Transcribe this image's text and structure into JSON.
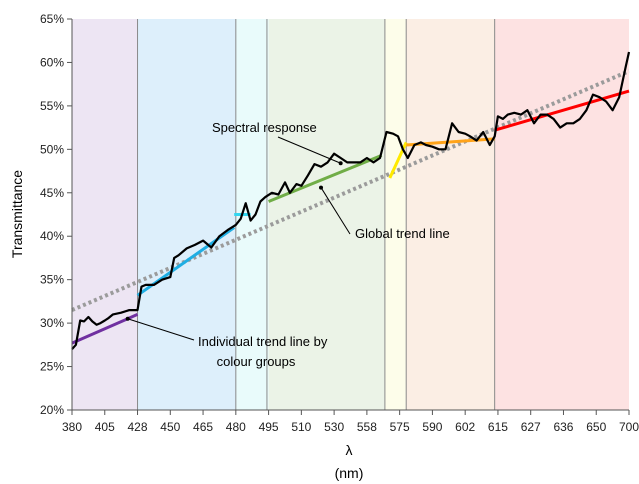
{
  "chart_data": {
    "type": "line",
    "title": "",
    "xlabel": "λ",
    "xlabel_unit": "(nm)",
    "ylabel": "Transmittance",
    "ylim": [
      20,
      65
    ],
    "y_ticks": [
      "20%",
      "25%",
      "30%",
      "35%",
      "40%",
      "45%",
      "50%",
      "55%",
      "60%",
      "65%"
    ],
    "x_ticks": [
      "380",
      "405",
      "428",
      "450",
      "465",
      "480",
      "495",
      "510",
      "530",
      "558",
      "575",
      "590",
      "602",
      "615",
      "627",
      "636",
      "650",
      "700"
    ],
    "grid": false,
    "colour_bands": [
      {
        "from": 0,
        "to": 2,
        "color": "#ede5f3"
      },
      {
        "from": 2,
        "to": 5,
        "color": "#ddeffb"
      },
      {
        "from": 5,
        "to": 6,
        "color": "#e9fbfb"
      },
      {
        "from": 6,
        "to": 9.55,
        "color": "#ebf3e7"
      },
      {
        "from": 9.55,
        "to": 10.2,
        "color": "#fdfdea"
      },
      {
        "from": 10.2,
        "to": 12.9,
        "color": "#fbeee4"
      },
      {
        "from": 12.9,
        "to": 17,
        "color": "#fde2e2"
      }
    ],
    "band_boundaries": [
      2,
      5,
      5.95,
      9.55,
      10.2,
      12.9
    ],
    "series": [
      {
        "name": "Spectral response",
        "color": "#000000",
        "x": [
          0,
          0.12,
          0.25,
          0.37,
          0.5,
          0.62,
          0.75,
          0.87,
          1.0,
          1.12,
          1.25,
          1.5,
          1.75,
          2.0,
          2.12,
          2.25,
          2.5,
          2.75,
          3.0,
          3.12,
          3.25,
          3.5,
          3.75,
          4.0,
          4.25,
          4.5,
          4.75,
          5.0,
          5.15,
          5.3,
          5.45,
          5.6,
          5.75,
          5.9,
          6.1,
          6.3,
          6.5,
          6.65,
          6.85,
          7.0,
          7.2,
          7.4,
          7.6,
          7.8,
          8.0,
          8.2,
          8.4,
          8.6,
          8.8,
          9.0,
          9.2,
          9.4,
          9.6,
          9.8,
          9.95,
          10.1,
          10.25,
          10.45,
          10.65,
          10.8,
          11.0,
          11.2,
          11.4,
          11.6,
          11.8,
          12.0,
          12.15,
          12.35,
          12.55,
          12.75,
          12.9,
          13.0,
          13.15,
          13.3,
          13.5,
          13.7,
          13.9,
          14.1,
          14.3,
          14.5,
          14.7,
          14.9,
          15.1,
          15.3,
          15.5,
          15.7,
          15.9,
          16.1,
          16.3,
          16.5,
          16.7,
          16.9,
          17.0
        ],
        "y": [
          27.0,
          27.5,
          30.3,
          30.2,
          30.7,
          30.2,
          29.8,
          30.0,
          30.3,
          30.6,
          31.0,
          31.2,
          31.5,
          31.5,
          34.2,
          34.4,
          34.4,
          35.0,
          35.3,
          37.5,
          37.8,
          38.6,
          39.0,
          39.5,
          38.7,
          40.0,
          40.7,
          41.3,
          42.0,
          43.8,
          41.8,
          42.5,
          44.0,
          44.5,
          45.0,
          44.8,
          46.2,
          45.0,
          46.0,
          45.8,
          47.0,
          48.3,
          48.0,
          48.5,
          49.5,
          49.0,
          48.5,
          48.5,
          48.5,
          49.0,
          48.5,
          49.0,
          52.0,
          51.8,
          51.5,
          50.0,
          49.0,
          50.5,
          50.8,
          50.5,
          50.3,
          50.0,
          50.0,
          53.0,
          52.0,
          51.8,
          51.5,
          51.0,
          52.0,
          50.5,
          51.5,
          53.8,
          53.5,
          54.0,
          54.2,
          54.0,
          54.5,
          53.0,
          54.0,
          54.0,
          53.5,
          52.5,
          53.0,
          53.0,
          53.5,
          54.5,
          56.3,
          56.0,
          55.5,
          54.5,
          56.0,
          59.5,
          61.2
        ]
      },
      {
        "name": "Global trend line",
        "color": "#9b9b9b",
        "dashed": true,
        "x": [
          0,
          17
        ],
        "y": [
          31.5,
          59.0
        ]
      },
      {
        "color": "#7030a0",
        "x": [
          0,
          2
        ],
        "y": [
          27.7,
          31.0
        ]
      },
      {
        "color": "#1faee3",
        "x": [
          2,
          4.95
        ],
        "y": [
          33.2,
          41.0
        ]
      },
      {
        "color": "#33d6f0",
        "x": [
          4.95,
          5.45
        ],
        "y": [
          42.5,
          42.5
        ]
      },
      {
        "color": "#70ad47",
        "x": [
          6.0,
          9.45
        ],
        "y": [
          44.0,
          49.3
        ]
      },
      {
        "color": "#ffea00",
        "x": [
          9.7,
          10.2
        ],
        "y": [
          46.7,
          50.8
        ]
      },
      {
        "color": "#ffa319",
        "x": [
          10.2,
          12.9
        ],
        "y": [
          50.5,
          51.2
        ]
      },
      {
        "color": "#ff0000",
        "x": [
          12.9,
          17
        ],
        "y": [
          52.2,
          56.7
        ]
      }
    ],
    "annotations": [
      {
        "text": "Spectral response",
        "point": [
          8.2,
          48.4
        ]
      },
      {
        "text": "Global trend line",
        "point": [
          7.6,
          45.6
        ]
      },
      {
        "text": "Individual trend line by",
        "text2": "colour groups",
        "point": [
          1.7,
          30.5
        ]
      }
    ]
  }
}
